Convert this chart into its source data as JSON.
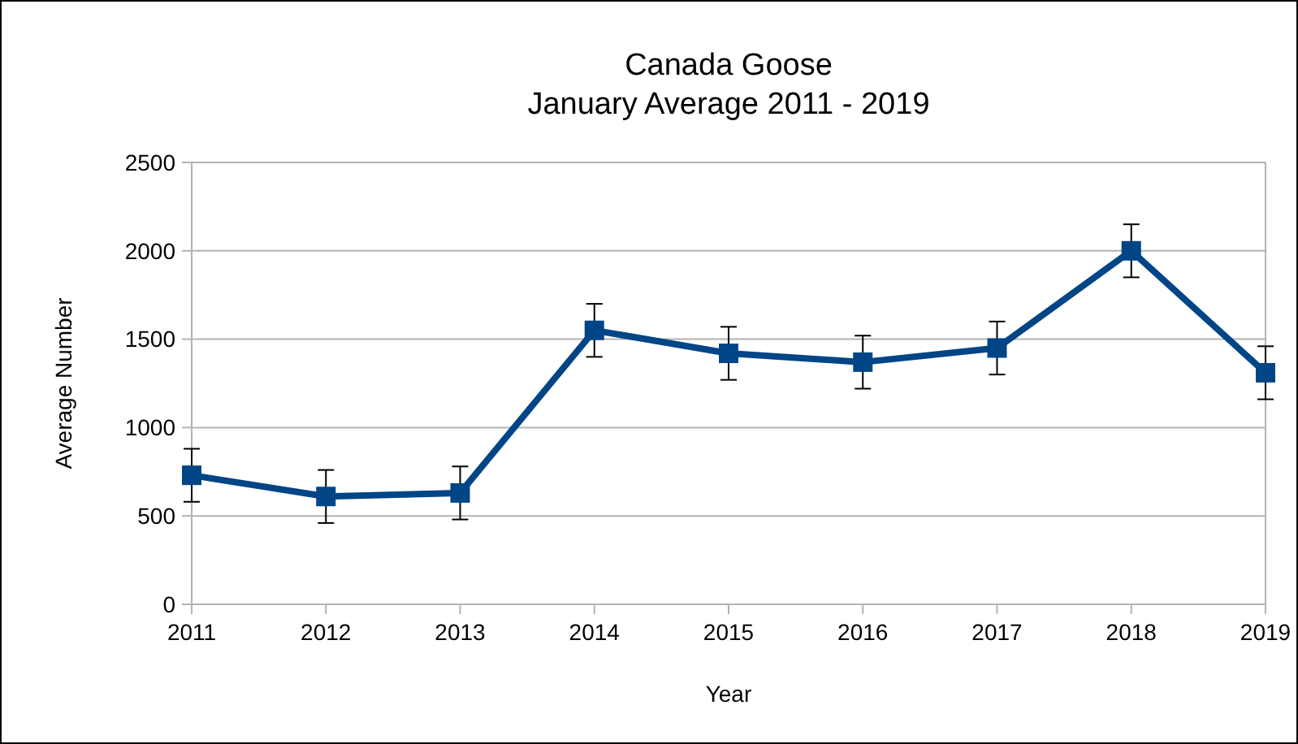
{
  "chart_data": {
    "type": "line",
    "title": "Canada Goose",
    "subtitle": "January Average 2011 - 2019",
    "xlabel": "Year",
    "ylabel": "Average Number",
    "categories": [
      "2011",
      "2012",
      "2013",
      "2014",
      "2015",
      "2016",
      "2017",
      "2018",
      "2019"
    ],
    "series": [
      {
        "color": "#004586",
        "values": [
          730,
          610,
          630,
          1550,
          1420,
          1370,
          1450,
          2000,
          1310
        ],
        "errors": [
          150,
          150,
          150,
          150,
          150,
          150,
          150,
          150,
          150
        ]
      }
    ],
    "ylim": [
      0,
      2500
    ],
    "yticks": [
      0,
      500,
      1000,
      1500,
      2000,
      2500
    ],
    "grid": "y",
    "marker": "square",
    "line_style": "solid"
  }
}
